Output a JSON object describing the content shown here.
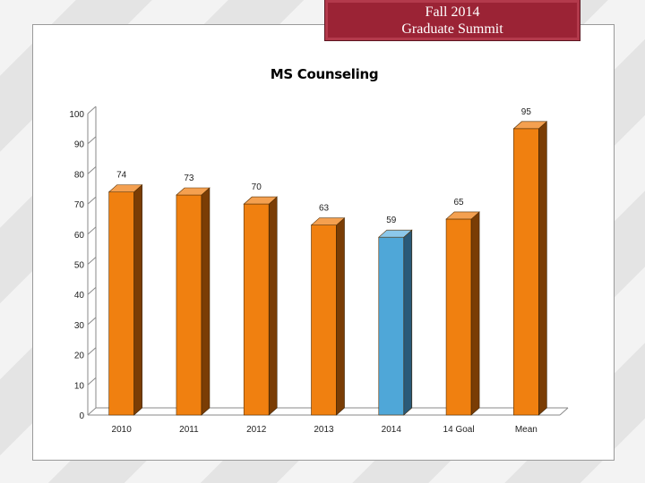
{
  "header": {
    "line1": "Fall 2014",
    "line2": "Graduate Summit"
  },
  "colors": {
    "banner": "#9b2335",
    "bar_front": "#f08010",
    "bar_side": "#7a3d05",
    "bar_top": "#f4a050",
    "highlight_front": "#4fa7d8",
    "highlight_side": "#2a5a78",
    "highlight_top": "#8cc8ea"
  },
  "chart_data": {
    "type": "bar",
    "title": "MS Counseling",
    "categories": [
      "2010",
      "2011",
      "2012",
      "2013",
      "2014",
      "14 Goal",
      "Mean"
    ],
    "values": [
      74,
      73,
      70,
      63,
      59,
      65,
      95
    ],
    "highlight_category": "2014",
    "ylim": [
      0,
      100
    ],
    "yticks": [
      0,
      10,
      20,
      30,
      40,
      50,
      60,
      70,
      80,
      90,
      100
    ],
    "xlabel": "",
    "ylabel": "",
    "grid": false,
    "style": "3d"
  }
}
